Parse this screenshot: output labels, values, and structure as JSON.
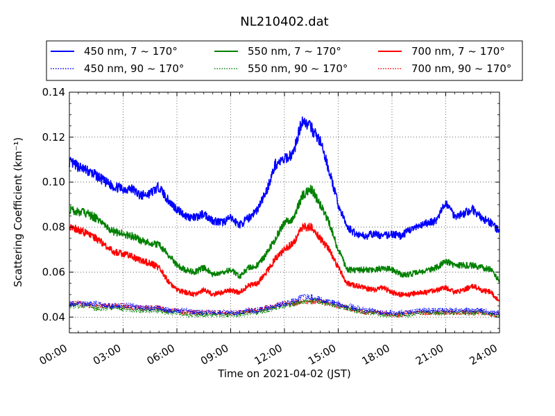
{
  "chart_data": {
    "type": "line",
    "title": "NL210402.dat",
    "xlabel": "Time on 2021-04-02 (JST)",
    "ylabel": "Scattering Coefficient (km⁻¹)",
    "xlim": [
      0,
      24
    ],
    "ylim": [
      0.033,
      0.14
    ],
    "x_ticks": [
      0,
      3,
      6,
      9,
      12,
      15,
      18,
      21,
      24
    ],
    "x_tick_labels": [
      "00:00",
      "03:00",
      "06:00",
      "09:00",
      "12:00",
      "15:00",
      "18:00",
      "21:00",
      "24:00"
    ],
    "y_ticks": [
      0.04,
      0.06,
      0.08,
      0.1,
      0.12,
      0.14
    ],
    "y_tick_labels": [
      "0.04",
      "0.06",
      "0.08",
      "0.10",
      "0.12",
      "0.14"
    ],
    "grid": true,
    "legend_position": "top",
    "x": [
      0,
      0.5,
      1,
      1.5,
      2,
      2.5,
      3,
      3.5,
      4,
      4.5,
      5,
      5.5,
      6,
      6.5,
      7,
      7.5,
      8,
      8.5,
      9,
      9.5,
      10,
      10.5,
      11,
      11.5,
      12,
      12.5,
      13,
      13.5,
      14,
      14.5,
      15,
      15.5,
      16,
      16.5,
      17,
      17.5,
      18,
      18.5,
      19,
      19.5,
      20,
      20.5,
      21,
      21.5,
      22,
      22.5,
      23,
      23.5,
      24
    ],
    "series": [
      {
        "name": "450 nm, 7 ~ 170°",
        "color": "#0000ff",
        "style": "solid",
        "values": [
          0.109,
          0.107,
          0.105,
          0.103,
          0.1,
          0.098,
          0.097,
          0.097,
          0.094,
          0.095,
          0.098,
          0.092,
          0.088,
          0.085,
          0.084,
          0.086,
          0.083,
          0.082,
          0.084,
          0.081,
          0.084,
          0.088,
          0.096,
          0.108,
          0.11,
          0.113,
          0.128,
          0.124,
          0.118,
          0.105,
          0.09,
          0.08,
          0.077,
          0.076,
          0.077,
          0.076,
          0.077,
          0.076,
          0.079,
          0.08,
          0.082,
          0.083,
          0.091,
          0.085,
          0.086,
          0.088,
          0.084,
          0.082,
          0.078
        ]
      },
      {
        "name": "450 nm, 90 ~ 170°",
        "color": "#0000ff",
        "style": "dotted",
        "values": [
          0.046,
          0.046,
          0.046,
          0.046,
          0.045,
          0.045,
          0.045,
          0.045,
          0.044,
          0.044,
          0.044,
          0.043,
          0.043,
          0.043,
          0.042,
          0.042,
          0.042,
          0.042,
          0.042,
          0.042,
          0.043,
          0.043,
          0.044,
          0.045,
          0.046,
          0.047,
          0.049,
          0.049,
          0.048,
          0.047,
          0.046,
          0.045,
          0.044,
          0.043,
          0.043,
          0.042,
          0.042,
          0.042,
          0.042,
          0.043,
          0.043,
          0.043,
          0.043,
          0.043,
          0.043,
          0.043,
          0.043,
          0.042,
          0.042
        ]
      },
      {
        "name": "550 nm, 7 ~ 170°",
        "color": "#008000",
        "style": "solid",
        "values": [
          0.088,
          0.087,
          0.086,
          0.084,
          0.08,
          0.078,
          0.077,
          0.076,
          0.074,
          0.073,
          0.072,
          0.068,
          0.063,
          0.061,
          0.06,
          0.062,
          0.059,
          0.06,
          0.061,
          0.058,
          0.062,
          0.063,
          0.068,
          0.075,
          0.082,
          0.084,
          0.094,
          0.097,
          0.09,
          0.082,
          0.07,
          0.061,
          0.061,
          0.061,
          0.061,
          0.062,
          0.061,
          0.059,
          0.059,
          0.06,
          0.061,
          0.062,
          0.065,
          0.063,
          0.063,
          0.063,
          0.062,
          0.061,
          0.056
        ]
      },
      {
        "name": "550 nm, 90 ~ 170°",
        "color": "#008000",
        "style": "dotted",
        "values": [
          0.045,
          0.045,
          0.045,
          0.044,
          0.044,
          0.044,
          0.044,
          0.043,
          0.043,
          0.043,
          0.043,
          0.042,
          0.042,
          0.041,
          0.041,
          0.041,
          0.041,
          0.041,
          0.041,
          0.041,
          0.042,
          0.042,
          0.043,
          0.044,
          0.045,
          0.046,
          0.047,
          0.047,
          0.047,
          0.046,
          0.045,
          0.044,
          0.043,
          0.042,
          0.042,
          0.041,
          0.041,
          0.041,
          0.041,
          0.042,
          0.042,
          0.042,
          0.042,
          0.042,
          0.042,
          0.042,
          0.042,
          0.041,
          0.041
        ]
      },
      {
        "name": "700 nm, 7 ~ 170°",
        "color": "#ff0000",
        "style": "solid",
        "values": [
          0.08,
          0.079,
          0.077,
          0.075,
          0.072,
          0.069,
          0.068,
          0.067,
          0.065,
          0.064,
          0.062,
          0.056,
          0.052,
          0.051,
          0.05,
          0.052,
          0.05,
          0.051,
          0.052,
          0.051,
          0.054,
          0.055,
          0.06,
          0.066,
          0.07,
          0.073,
          0.08,
          0.08,
          0.075,
          0.07,
          0.062,
          0.055,
          0.054,
          0.053,
          0.052,
          0.053,
          0.051,
          0.05,
          0.05,
          0.051,
          0.051,
          0.052,
          0.053,
          0.051,
          0.052,
          0.054,
          0.052,
          0.051,
          0.047
        ]
      },
      {
        "name": "700 nm, 90 ~ 170°",
        "color": "#ff0000",
        "style": "dotted",
        "values": [
          0.046,
          0.046,
          0.045,
          0.045,
          0.045,
          0.045,
          0.045,
          0.044,
          0.044,
          0.044,
          0.044,
          0.043,
          0.043,
          0.042,
          0.042,
          0.042,
          0.042,
          0.042,
          0.042,
          0.042,
          0.043,
          0.043,
          0.044,
          0.045,
          0.046,
          0.046,
          0.047,
          0.047,
          0.047,
          0.046,
          0.045,
          0.044,
          0.043,
          0.042,
          0.042,
          0.042,
          0.041,
          0.041,
          0.042,
          0.042,
          0.042,
          0.042,
          0.042,
          0.042,
          0.042,
          0.042,
          0.042,
          0.041,
          0.041
        ]
      }
    ]
  }
}
